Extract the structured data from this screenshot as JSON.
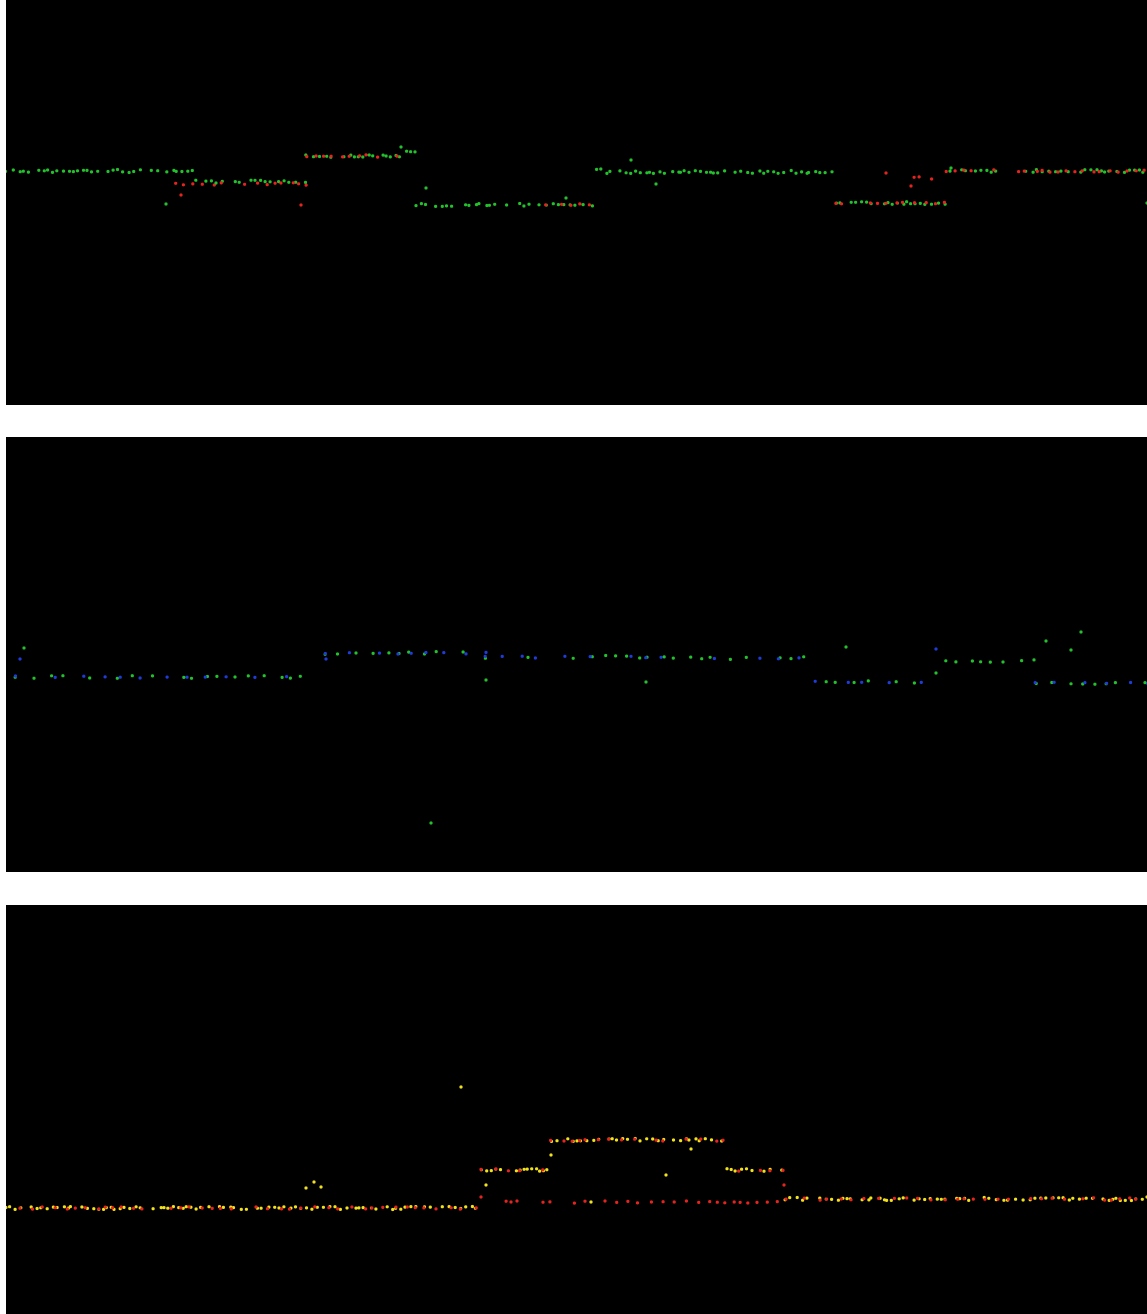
{
  "colors": {
    "background": "#000000",
    "page": "#ffffff",
    "red": "#e8231e",
    "green": "#21c22b",
    "blue": "#1e3cdc",
    "yellow": "#f2e21a"
  },
  "panels": [
    {
      "id": "panel-1",
      "name": "scan-panel-top",
      "layers": [
        {
          "color": "green",
          "segments": [
            [
              0,
              190,
              171
            ],
            [
              190,
              300,
              181
            ],
            [
              300,
              400,
              156
            ],
            [
              400,
              410,
              152
            ],
            [
              410,
              590,
              205
            ],
            [
              590,
              600,
              168
            ],
            [
              600,
              830,
              172
            ],
            [
              830,
              940,
              203
            ],
            [
              940,
              1141,
              171
            ]
          ],
          "spacing": 5,
          "jitter": 1.5
        },
        {
          "color": "red",
          "segments": [
            [
              170,
              300,
              184
            ],
            [
              300,
              400,
              156
            ],
            [
              540,
              590,
              205
            ],
            [
              830,
              940,
              203
            ],
            [
              900,
              940,
              178
            ],
            [
              940,
              1141,
              171
            ]
          ],
          "spacing": 9,
          "jitter": 1.2
        }
      ],
      "outliers": [
        {
          "color": "green",
          "points": [
            [
              160,
              204
            ],
            [
              210,
              183
            ],
            [
              420,
              188
            ],
            [
              560,
              198
            ],
            [
              625,
              160
            ],
            [
              650,
              184
            ],
            [
              1141,
              203
            ],
            [
              395,
              147
            ],
            [
              945,
              168
            ]
          ]
        },
        {
          "color": "red",
          "points": [
            [
              175,
              195
            ],
            [
              295,
              205
            ],
            [
              905,
              186
            ],
            [
              880,
              173
            ]
          ]
        }
      ]
    },
    {
      "id": "panel-2",
      "name": "scan-panel-middle",
      "layers": [
        {
          "color": "green",
          "segments": [
            [
              10,
              300,
              240
            ],
            [
              320,
              480,
              216
            ],
            [
              480,
              640,
              220
            ],
            [
              640,
              810,
              221
            ],
            [
              820,
              930,
              245
            ],
            [
              940,
              1030,
              224
            ],
            [
              1030,
              1141,
              246
            ]
          ],
          "spacing": 14,
          "jitter": 1.5
        },
        {
          "color": "blue",
          "segments": [
            [
              10,
              300,
              240
            ],
            [
              320,
              480,
              216
            ],
            [
              480,
              640,
              220
            ],
            [
              640,
              810,
              221
            ],
            [
              810,
              930,
              245
            ],
            [
              1030,
              1141,
              246
            ]
          ],
          "spacing": 22,
          "jitter": 1
        }
      ],
      "outliers": [
        {
          "color": "green",
          "points": [
            [
              18,
              211
            ],
            [
              480,
              243
            ],
            [
              640,
              245
            ],
            [
              840,
              210
            ],
            [
              1040,
              204
            ],
            [
              1075,
              195
            ],
            [
              1065,
              213
            ],
            [
              930,
              236
            ],
            [
              425,
              386
            ]
          ]
        },
        {
          "color": "blue",
          "points": [
            [
              320,
              222
            ],
            [
              930,
              212
            ],
            [
              14,
              222
            ]
          ]
        }
      ]
    },
    {
      "id": "panel-3",
      "name": "scan-panel-bottom",
      "layers": [
        {
          "color": "yellow",
          "segments": [
            [
              0,
              470,
              303
            ],
            [
              475,
              545,
              265
            ],
            [
              545,
              720,
              235
            ],
            [
              720,
              780,
              265
            ],
            [
              780,
              1141,
              294
            ]
          ],
          "spacing": 5,
          "jitter": 1.5
        },
        {
          "color": "red",
          "segments": [
            [
              0,
              470,
              303
            ],
            [
              475,
              545,
              265
            ],
            [
              545,
              720,
              235
            ],
            [
              720,
              780,
              265
            ],
            [
              780,
              1141,
              294
            ],
            [
              500,
              780,
              297
            ]
          ],
          "spacing": 11,
          "jitter": 1.2
        }
      ],
      "outliers": [
        {
          "color": "yellow",
          "points": [
            [
              455,
              182
            ],
            [
              300,
              283
            ],
            [
              308,
              277
            ],
            [
              315,
              282
            ],
            [
              585,
              297
            ],
            [
              660,
              270
            ],
            [
              685,
              244
            ],
            [
              480,
              280
            ],
            [
              545,
              250
            ],
            [
              1141,
              292
            ]
          ]
        },
        {
          "color": "red",
          "points": [
            [
              475,
              292
            ],
            [
              778,
              280
            ],
            [
              505,
              297
            ]
          ]
        }
      ]
    }
  ]
}
